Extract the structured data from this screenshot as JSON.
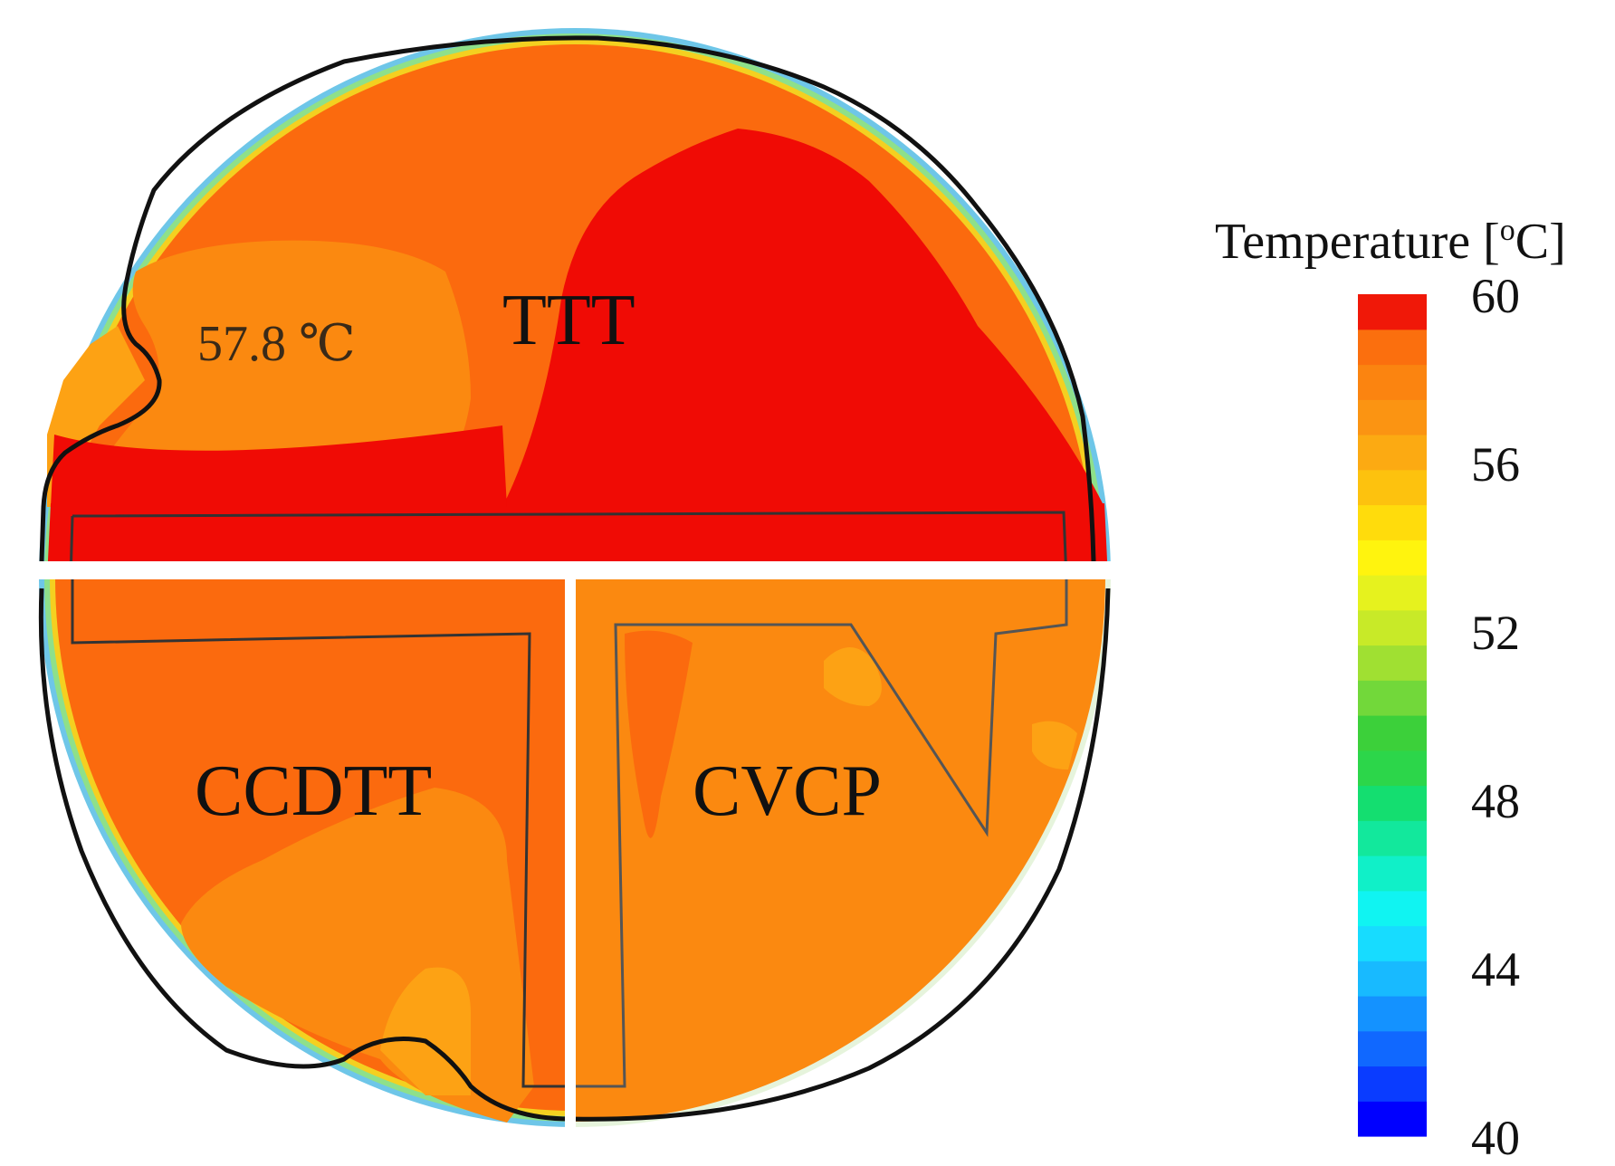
{
  "figure": {
    "sections": [
      {
        "name": "TTT",
        "label": "TTT"
      },
      {
        "name": "CCDTT",
        "label": "CCDTT"
      },
      {
        "name": "CVCP",
        "label": "CVCP"
      }
    ],
    "annotations": [
      {
        "text": "57.8 ℃",
        "value": 57.8,
        "unit": "℃"
      }
    ],
    "colors": {
      "hot": "#f00b05",
      "warm": "#fb6a0e",
      "mid": "#fb8910",
      "lighter": "#fda214",
      "outline": "#111111",
      "divider": "#ffffff"
    }
  },
  "legend": {
    "title": "Temperature [ºC]",
    "title_main": "Temperature [",
    "title_sup": "o",
    "title_end": "C]",
    "min": 40,
    "max": 60,
    "ticks": [
      "60",
      "56",
      "52",
      "48",
      "44",
      "40"
    ],
    "tick_values": [
      60,
      56,
      52,
      48,
      44,
      40
    ],
    "scale_colors": [
      "#0000ff",
      "#0a3cff",
      "#1068ff",
      "#1492ff",
      "#18baff",
      "#17dcff",
      "#10f4f2",
      "#10f0c8",
      "#12e89c",
      "#14de70",
      "#2cd64a",
      "#3cd03a",
      "#72d83a",
      "#a0e032",
      "#c8ea28",
      "#e6f21e",
      "#fff40e",
      "#ffdc0c",
      "#fdc20e",
      "#fcaa12",
      "#fb9412",
      "#fb8410",
      "#fb6f0e",
      "#f01808"
    ]
  }
}
